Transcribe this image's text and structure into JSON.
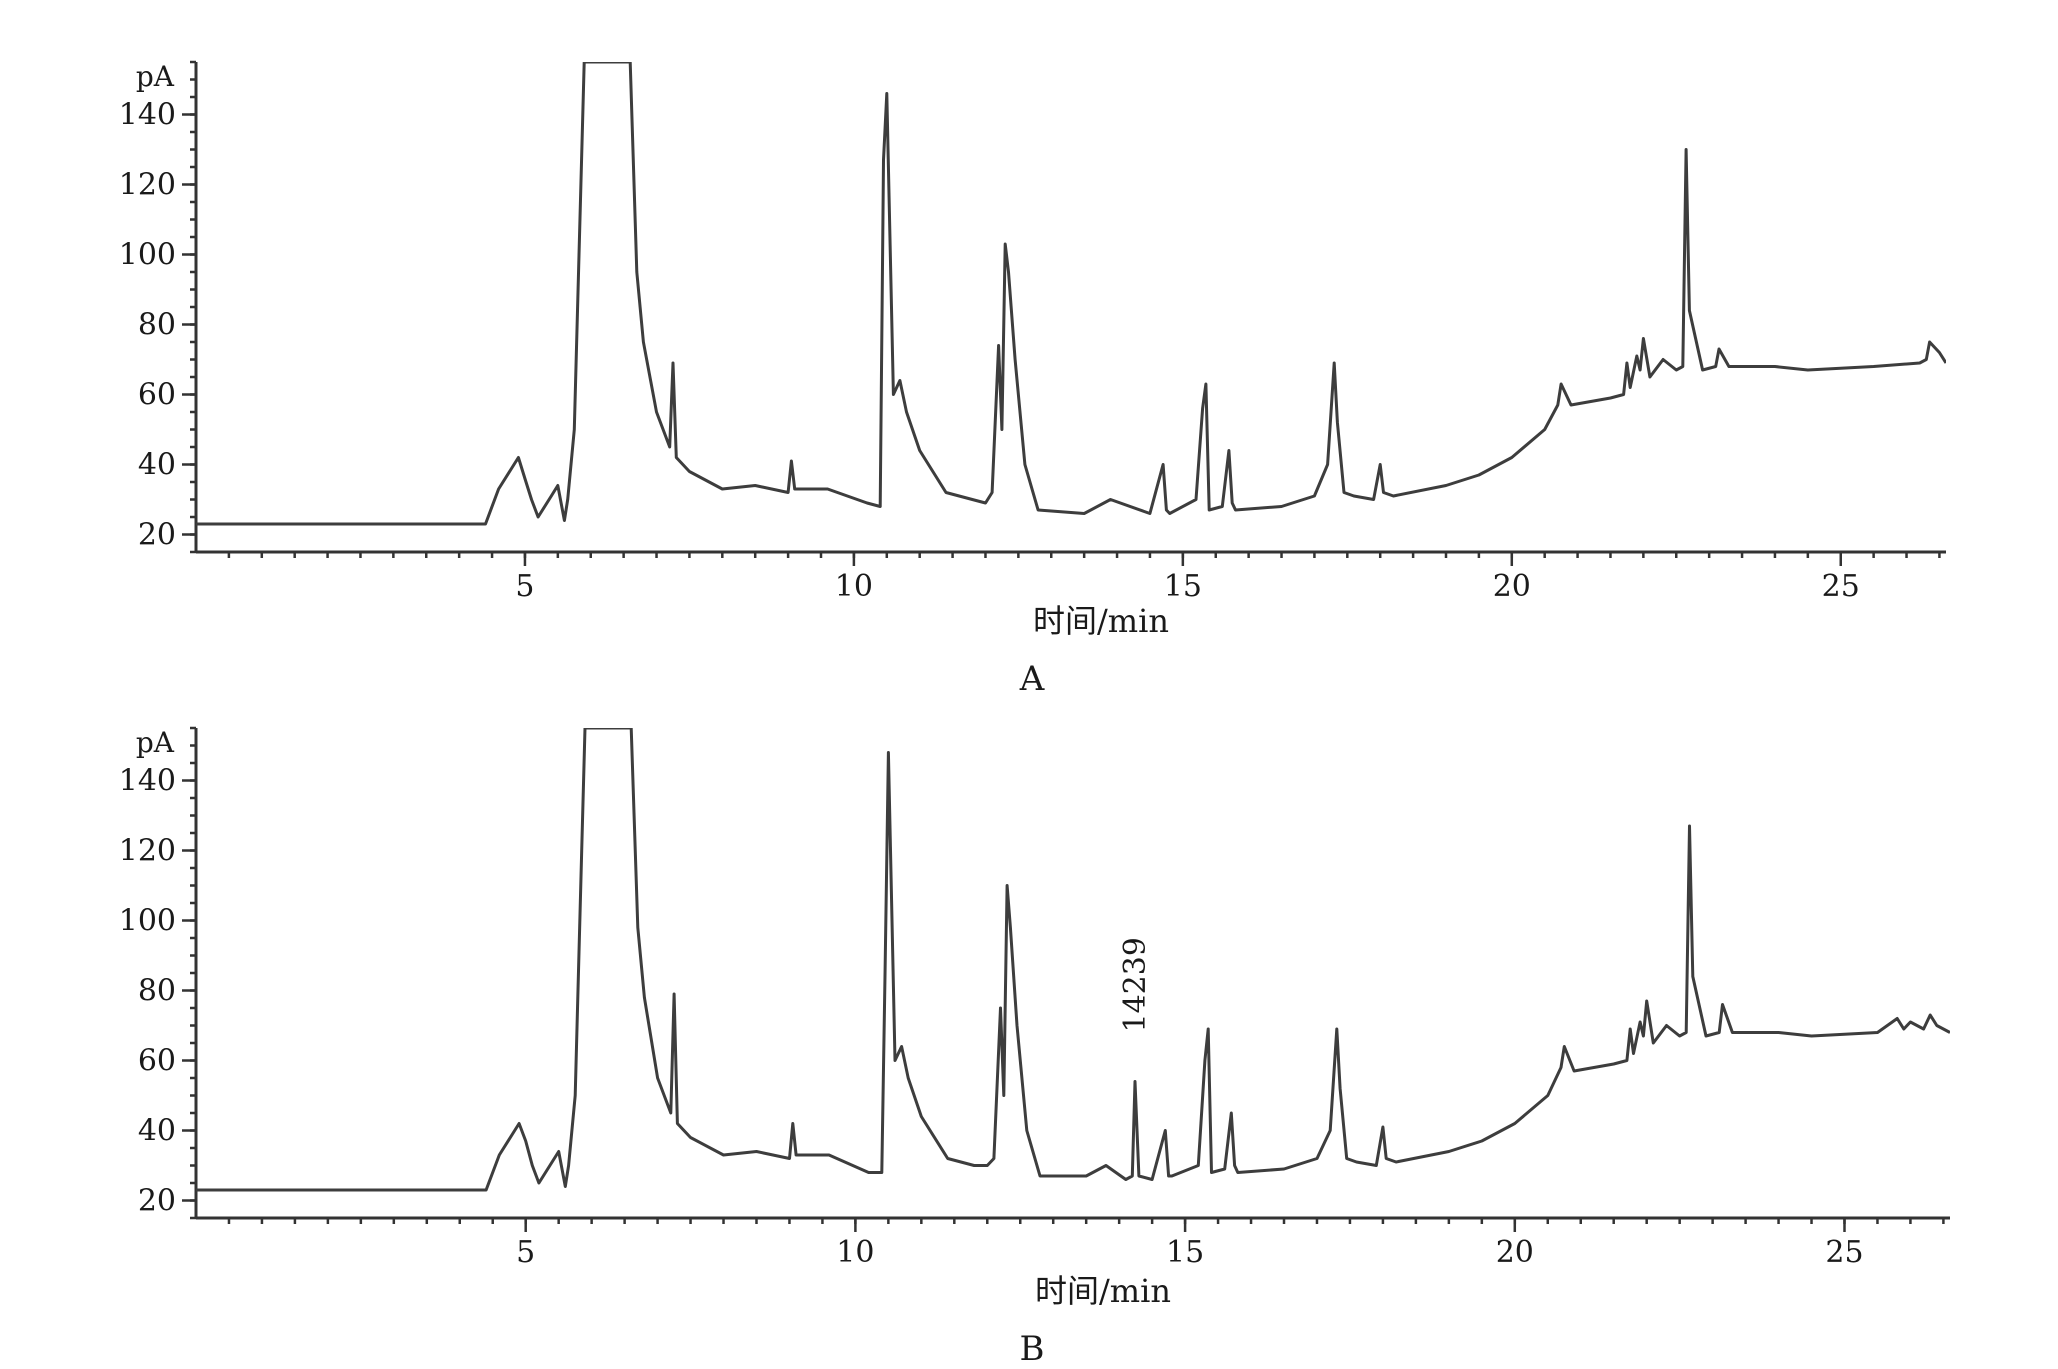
{
  "chart_data": [
    {
      "type": "line",
      "panel_label": "A",
      "xlabel": "时间/min",
      "ylabel": "pA",
      "xlim": [
        0,
        26.6
      ],
      "ylim": [
        15,
        155
      ],
      "xticks": [
        5,
        10,
        15,
        20,
        25
      ],
      "yticks": [
        20,
        40,
        60,
        80,
        100,
        120,
        140
      ],
      "grid": false,
      "series": [
        {
          "x": [
            0,
            4.4,
            4.6,
            4.8,
            4.9,
            5.0,
            5.1,
            5.2,
            5.4,
            5.5,
            5.6,
            5.65,
            5.75,
            5.85,
            5.9,
            6.6,
            6.7,
            6.8,
            7.0,
            7.2,
            7.25,
            7.3,
            7.5,
            8.0,
            8.5,
            9.0,
            9.05,
            9.1,
            9.6,
            10.2,
            10.4,
            10.45,
            10.5,
            10.6,
            10.7,
            10.8,
            11.0,
            11.4,
            11.8,
            12.0,
            12.1,
            12.2,
            12.25,
            12.3,
            12.35,
            12.45,
            12.6,
            12.8,
            13.5,
            13.9,
            14.5,
            14.7,
            14.75,
            14.8,
            15.2,
            15.3,
            15.35,
            15.4,
            15.6,
            15.7,
            15.75,
            15.8,
            16.5,
            17.0,
            17.2,
            17.3,
            17.35,
            17.45,
            17.6,
            17.9,
            18.0,
            18.05,
            18.2,
            19.0,
            19.5,
            20.0,
            20.5,
            20.7,
            20.75,
            20.9,
            21.5,
            21.7,
            21.75,
            21.8,
            21.9,
            21.95,
            22.0,
            22.1,
            22.3,
            22.5,
            22.6,
            22.65,
            22.7,
            22.9,
            23.1,
            23.15,
            23.3,
            24.0,
            24.5,
            25.5,
            26.2,
            26.3,
            26.35,
            26.5,
            26.6
          ],
          "y": [
            23,
            23,
            33,
            39,
            42,
            36,
            30,
            25,
            31,
            34,
            24,
            30,
            50,
            120,
            155,
            155,
            95,
            75,
            55,
            45,
            69,
            42,
            38,
            33,
            34,
            32,
            41,
            33,
            33,
            29,
            28,
            127,
            146,
            60,
            64,
            55,
            44,
            32,
            30,
            29,
            32,
            74,
            50,
            103,
            95,
            70,
            40,
            27,
            26,
            30,
            26,
            40,
            27,
            26,
            30,
            56,
            63,
            27,
            28,
            44,
            29,
            27,
            28,
            31,
            40,
            69,
            52,
            32,
            31,
            30,
            40,
            32,
            31,
            34,
            37,
            42,
            50,
            57,
            63,
            57,
            59,
            60,
            69,
            62,
            71,
            67,
            76,
            65,
            70,
            67,
            68,
            130,
            84,
            67,
            68,
            73,
            68,
            68,
            67,
            68,
            69,
            70,
            75,
            72,
            69
          ]
        }
      ]
    },
    {
      "type": "line",
      "panel_label": "B",
      "xlabel": "时间/min",
      "ylabel": "pA",
      "xlim": [
        0,
        26.6
      ],
      "ylim": [
        15,
        155
      ],
      "xticks": [
        5,
        10,
        15,
        20,
        25
      ],
      "yticks": [
        20,
        40,
        60,
        80,
        100,
        120,
        140
      ],
      "grid": false,
      "annotations": [
        {
          "text": "14239",
          "x": 14.24,
          "y": 68
        }
      ],
      "series": [
        {
          "x": [
            0,
            4.4,
            4.6,
            4.8,
            4.9,
            5.0,
            5.1,
            5.2,
            5.4,
            5.5,
            5.6,
            5.65,
            5.75,
            5.85,
            5.9,
            6.6,
            6.7,
            6.8,
            7.0,
            7.2,
            7.25,
            7.3,
            7.5,
            8.0,
            8.5,
            9.0,
            9.05,
            9.1,
            9.6,
            10.2,
            10.4,
            10.45,
            10.5,
            10.6,
            10.7,
            10.8,
            11.0,
            11.4,
            11.8,
            12.0,
            12.1,
            12.2,
            12.25,
            12.3,
            12.35,
            12.45,
            12.6,
            12.8,
            13.5,
            13.8,
            14.1,
            14.2,
            14.24,
            14.3,
            14.5,
            14.7,
            14.75,
            14.8,
            15.2,
            15.3,
            15.35,
            15.4,
            15.6,
            15.7,
            15.75,
            15.8,
            16.5,
            17.0,
            17.2,
            17.3,
            17.35,
            17.45,
            17.6,
            17.9,
            18.0,
            18.05,
            18.2,
            19.0,
            19.5,
            20.0,
            20.5,
            20.7,
            20.75,
            20.9,
            21.5,
            21.7,
            21.75,
            21.8,
            21.9,
            21.95,
            22.0,
            22.1,
            22.3,
            22.5,
            22.6,
            22.65,
            22.7,
            22.9,
            23.1,
            23.15,
            23.3,
            24.0,
            24.5,
            25.5,
            25.8,
            25.9,
            26.0,
            26.2,
            26.3,
            26.4,
            26.6
          ],
          "y": [
            23,
            23,
            33,
            39,
            42,
            37,
            30,
            25,
            31,
            34,
            24,
            30,
            50,
            120,
            155,
            155,
            98,
            78,
            55,
            45,
            79,
            42,
            38,
            33,
            34,
            32,
            42,
            33,
            33,
            28,
            28,
            86,
            148,
            60,
            64,
            55,
            44,
            32,
            30,
            30,
            32,
            75,
            50,
            110,
            98,
            70,
            40,
            27,
            27,
            30,
            26,
            27,
            54,
            27,
            26,
            40,
            27,
            27,
            30,
            60,
            69,
            28,
            29,
            45,
            30,
            28,
            29,
            32,
            40,
            69,
            52,
            32,
            31,
            30,
            41,
            32,
            31,
            34,
            37,
            42,
            50,
            58,
            64,
            57,
            59,
            60,
            69,
            62,
            71,
            67,
            77,
            65,
            70,
            67,
            68,
            127,
            84,
            67,
            68,
            76,
            68,
            68,
            67,
            68,
            72,
            69,
            71,
            69,
            73,
            70,
            68
          ]
        }
      ]
    }
  ]
}
